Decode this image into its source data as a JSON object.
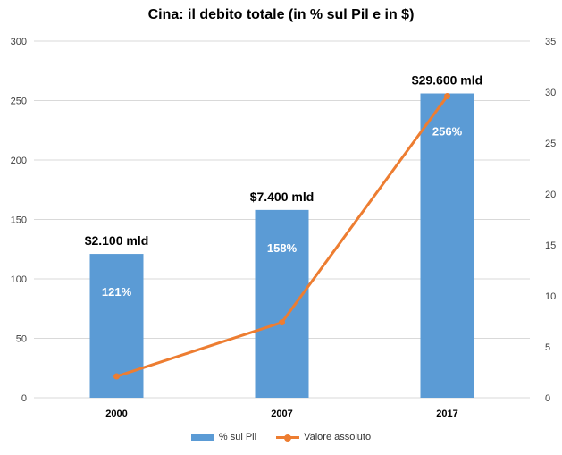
{
  "chart_data": {
    "type": "bar",
    "title": "Cina: il debito totale (in % sul Pil e in $)",
    "categories": [
      "2000",
      "2007",
      "2017"
    ],
    "series": [
      {
        "name": "% sul Pil",
        "type": "bar",
        "axis": "left",
        "values": [
          121,
          158,
          256
        ],
        "data_labels": [
          "121%",
          "158%",
          "256%"
        ],
        "top_labels": [
          "$2.100 mld",
          "$7.400 mld",
          "$29.600 mld"
        ],
        "color": "#5B9BD5"
      },
      {
        "name": "Valore assoluto",
        "type": "line",
        "axis": "right",
        "values": [
          2.1,
          7.4,
          29.6
        ],
        "color": "#ED7D31"
      }
    ],
    "y_left": {
      "min": 0,
      "max": 300,
      "ticks": [
        0,
        50,
        100,
        150,
        200,
        250,
        300
      ]
    },
    "y_right": {
      "min": 0,
      "max": 35,
      "ticks": [
        0,
        5,
        10,
        15,
        20,
        25,
        30,
        35
      ]
    },
    "grid": true,
    "legend": "bottom"
  }
}
